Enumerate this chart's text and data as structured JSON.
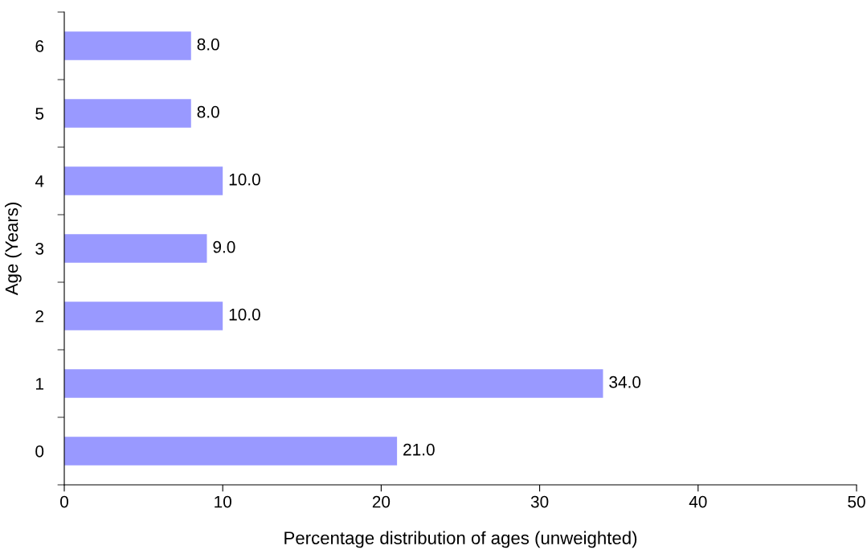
{
  "chart_data": {
    "type": "bar",
    "orientation": "horizontal",
    "xlabel": "Percentage distribution of ages (unweighted)",
    "ylabel": "Age (Years)",
    "categories": [
      "6",
      "5",
      "4",
      "3",
      "2",
      "1",
      "0"
    ],
    "values": [
      8.0,
      8.0,
      10.0,
      9.0,
      10.0,
      34.0,
      21.0
    ],
    "value_labels": [
      "8.0",
      "8.0",
      "10.0",
      "9.0",
      "10.0",
      "34.0",
      "21.0"
    ],
    "color": "#9999ff",
    "xlim": [
      0,
      50
    ],
    "xticks": [
      0,
      10,
      20,
      30,
      40,
      50
    ],
    "grid": false,
    "legend": false
  }
}
